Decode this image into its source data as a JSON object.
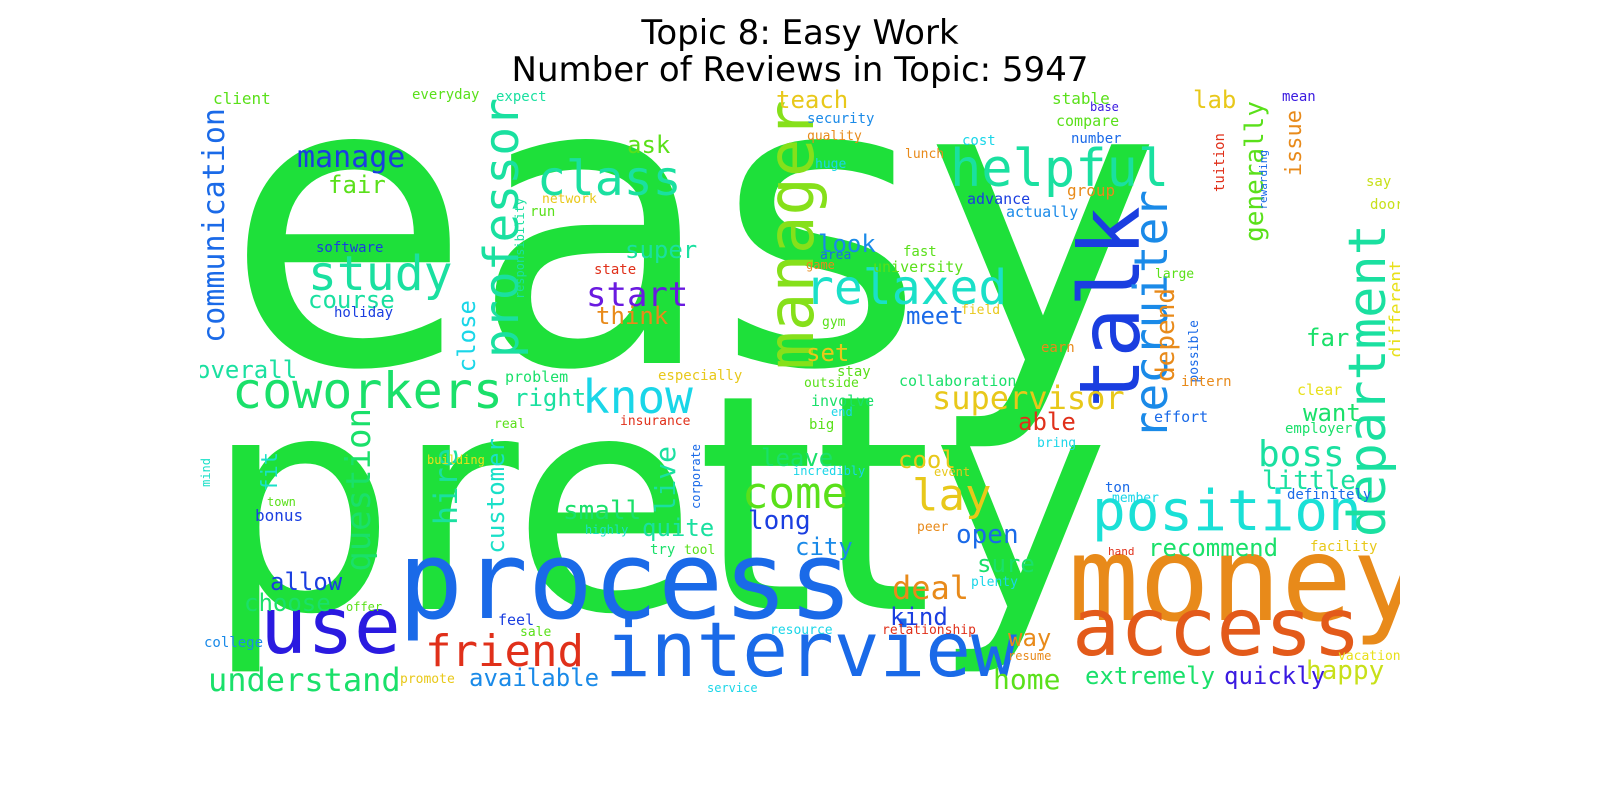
{
  "title_line1": "Topic 8: Easy Work",
  "title_line2": "Number of Reviews in Topic: 5947",
  "words": [
    {
      "t": "easy",
      "c": "#1ee03a"
    },
    {
      "t": "pretty",
      "c": "#1ee03a"
    },
    {
      "t": "money",
      "c": "#e88a1a"
    },
    {
      "t": "process",
      "c": "#1a6ae8"
    },
    {
      "t": "interview",
      "c": "#1a6ae8"
    },
    {
      "t": "access",
      "c": "#e35a1a"
    },
    {
      "t": "use",
      "c": "#2a1ae0"
    },
    {
      "t": "talk",
      "c": "#1a3ee0"
    },
    {
      "t": "manager",
      "c": "#86e01a"
    },
    {
      "t": "position",
      "c": "#1ae0d6"
    },
    {
      "t": "department",
      "c": "#1ae0a0"
    },
    {
      "t": "recruiter",
      "c": "#1a8ae8"
    },
    {
      "t": "professor",
      "c": "#1ae0a0"
    },
    {
      "t": "coworkers",
      "c": "#1ae06a"
    },
    {
      "t": "helpful",
      "c": "#1ae0a0"
    },
    {
      "t": "relaxed",
      "c": "#1ae0c8"
    },
    {
      "t": "class",
      "c": "#1ae0a0"
    },
    {
      "t": "study",
      "c": "#1ae0a0"
    },
    {
      "t": "know",
      "c": "#1ad6e8"
    },
    {
      "t": "come",
      "c": "#5ae01a"
    },
    {
      "t": "lay",
      "c": "#e8c81a"
    },
    {
      "t": "friend",
      "c": "#e0301a"
    },
    {
      "t": "question",
      "c": "#1ae06a"
    },
    {
      "t": "communication",
      "c": "#1a6ae8"
    },
    {
      "t": "boss",
      "c": "#1ae0a0"
    },
    {
      "t": "understand",
      "c": "#1ae06a"
    },
    {
      "t": "deal",
      "c": "#e88a1a"
    },
    {
      "t": "hire",
      "c": "#1ae0a0"
    },
    {
      "t": "supervisor",
      "c": "#e8c81a"
    },
    {
      "t": "start",
      "c": "#6a1ae0"
    },
    {
      "t": "customer",
      "c": "#1ae0c8"
    },
    {
      "t": "manage",
      "c": "#1a3ee0"
    },
    {
      "t": "depend",
      "c": "#e88a1a"
    },
    {
      "t": "generally",
      "c": "#5ae01a"
    },
    {
      "t": "extremely",
      "c": "#1ae06a"
    },
    {
      "t": "quickly",
      "c": "#3a1ae0"
    },
    {
      "t": "available",
      "c": "#1a8ae8"
    },
    {
      "t": "home",
      "c": "#5ae01a"
    },
    {
      "t": "happy",
      "c": "#c8e01a"
    },
    {
      "t": "small",
      "c": "#1ae06a"
    },
    {
      "t": "live",
      "c": "#1ae0a0"
    },
    {
      "t": "long",
      "c": "#1a3ee0"
    },
    {
      "t": "way",
      "c": "#e88a1a"
    },
    {
      "t": "recommend",
      "c": "#1ae06a"
    },
    {
      "t": "little",
      "c": "#1ae0a0"
    },
    {
      "t": "want",
      "c": "#1ae06a"
    },
    {
      "t": "close",
      "c": "#1ad6e8"
    },
    {
      "t": "course",
      "c": "#1ae0a0"
    },
    {
      "t": "overall",
      "c": "#1ae0a0"
    },
    {
      "t": "right",
      "c": "#1ae0a0"
    },
    {
      "t": "allow",
      "c": "#1a3ee0"
    },
    {
      "t": "choose",
      "c": "#1ae06a"
    },
    {
      "t": "open",
      "c": "#1a6ae8"
    },
    {
      "t": "sure",
      "c": "#1ae06a"
    },
    {
      "t": "kind",
      "c": "#1a3ee0"
    },
    {
      "t": "city",
      "c": "#1a8ae8"
    },
    {
      "t": "quite",
      "c": "#1ae0a0"
    },
    {
      "t": "able",
      "c": "#e0301a"
    },
    {
      "t": "cool",
      "c": "#e8c81a"
    },
    {
      "t": "leave",
      "c": "#1ae06a"
    },
    {
      "t": "meet",
      "c": "#1a6ae8"
    },
    {
      "t": "look",
      "c": "#1a8ae8"
    },
    {
      "t": "super",
      "c": "#1ae0a0"
    },
    {
      "t": "think",
      "c": "#e88a1a"
    },
    {
      "t": "set",
      "c": "#e8c81a"
    },
    {
      "t": "fair",
      "c": "#5ae01a"
    },
    {
      "t": "ask",
      "c": "#5ae01a"
    },
    {
      "t": "teach",
      "c": "#e8c81a"
    },
    {
      "t": "lab",
      "c": "#e8c81a"
    },
    {
      "t": "issue",
      "c": "#e88a1a"
    },
    {
      "t": "far",
      "c": "#1ae06a"
    },
    {
      "t": "different",
      "c": "#e8e01a"
    },
    {
      "t": "fit",
      "c": "#1ae0c8"
    },
    {
      "t": "bonus",
      "c": "#1a3ee0"
    },
    {
      "t": "client",
      "c": "#5ae01a"
    },
    {
      "t": "everyday",
      "c": "#5ae01a"
    },
    {
      "t": "expect",
      "c": "#1ae0a0"
    },
    {
      "t": "security",
      "c": "#1a8ae8"
    },
    {
      "t": "quality",
      "c": "#e88a1a"
    },
    {
      "t": "cost",
      "c": "#1ad6e8"
    },
    {
      "t": "huge",
      "c": "#1ad6e8"
    },
    {
      "t": "lunch",
      "c": "#e88a1a"
    },
    {
      "t": "stable",
      "c": "#5ae01a"
    },
    {
      "t": "compare",
      "c": "#5ae01a"
    },
    {
      "t": "number",
      "c": "#1a6ae8"
    },
    {
      "t": "base",
      "c": "#3a1ae0"
    },
    {
      "t": "mean",
      "c": "#3a1ae0"
    },
    {
      "t": "tuition",
      "c": "#e0301a"
    },
    {
      "t": "rewarding",
      "c": "#1a6ae8"
    },
    {
      "t": "group",
      "c": "#e88a1a"
    },
    {
      "t": "advance",
      "c": "#1a3ee0"
    },
    {
      "t": "actually",
      "c": "#1a8ae8"
    },
    {
      "t": "say",
      "c": "#c8e01a"
    },
    {
      "t": "door",
      "c": "#c8e01a"
    },
    {
      "t": "network",
      "c": "#e8c81a"
    },
    {
      "t": "run",
      "c": "#5ae01a"
    },
    {
      "t": "responsibility",
      "c": "#1ae0a0"
    },
    {
      "t": "software",
      "c": "#1a3ee0"
    },
    {
      "t": "holiday",
      "c": "#1a3ee0"
    },
    {
      "t": "state",
      "c": "#e0301a"
    },
    {
      "t": "area",
      "c": "#1a6ae8"
    },
    {
      "t": "game",
      "c": "#e88a1a"
    },
    {
      "t": "fast",
      "c": "#5ae01a"
    },
    {
      "t": "university",
      "c": "#5ae01a"
    },
    {
      "t": "large",
      "c": "#5ae01a"
    },
    {
      "t": "field",
      "c": "#e8c81a"
    },
    {
      "t": "possible",
      "c": "#1a6ae8"
    },
    {
      "t": "gym",
      "c": "#5ae01a"
    },
    {
      "t": "earn",
      "c": "#e88a1a"
    },
    {
      "t": "intern",
      "c": "#e88a1a"
    },
    {
      "t": "especially",
      "c": "#e8c81a"
    },
    {
      "t": "stay",
      "c": "#5ae01a"
    },
    {
      "t": "collaboration",
      "c": "#1ae06a"
    },
    {
      "t": "outside",
      "c": "#5ae01a"
    },
    {
      "t": "problem",
      "c": "#1ae06a"
    },
    {
      "t": "involve",
      "c": "#1ae06a"
    },
    {
      "t": "end",
      "c": "#1ad6e8"
    },
    {
      "t": "clear",
      "c": "#e8e01a"
    },
    {
      "t": "effort",
      "c": "#1a6ae8"
    },
    {
      "t": "employer",
      "c": "#1ae06a"
    },
    {
      "t": "insurance",
      "c": "#e0301a"
    },
    {
      "t": "real",
      "c": "#5ae01a"
    },
    {
      "t": "big",
      "c": "#5ae01a"
    },
    {
      "t": "bring",
      "c": "#1ad6e8"
    },
    {
      "t": "mind",
      "c": "#1ae0c8"
    },
    {
      "t": "building",
      "c": "#e8e01a"
    },
    {
      "t": "corporate",
      "c": "#1a6ae8"
    },
    {
      "t": "incredibly",
      "c": "#1ad6e8"
    },
    {
      "t": "event",
      "c": "#e8c81a"
    },
    {
      "t": "ton",
      "c": "#1a6ae8"
    },
    {
      "t": "definitely",
      "c": "#1a6ae8"
    },
    {
      "t": "member",
      "c": "#1ad6e8"
    },
    {
      "t": "town",
      "c": "#5ae01a"
    },
    {
      "t": "highly",
      "c": "#1ae0c8"
    },
    {
      "t": "peer",
      "c": "#e88a1a"
    },
    {
      "t": "try",
      "c": "#1ae06a"
    },
    {
      "t": "tool",
      "c": "#5ae01a"
    },
    {
      "t": "hand",
      "c": "#e0301a"
    },
    {
      "t": "facility",
      "c": "#e8c81a"
    },
    {
      "t": "plenty",
      "c": "#1ad6e8"
    },
    {
      "t": "offer",
      "c": "#5ae01a"
    },
    {
      "t": "feel",
      "c": "#1a3ee0"
    },
    {
      "t": "sale",
      "c": "#5ae01a"
    },
    {
      "t": "college",
      "c": "#1a8ae8"
    },
    {
      "t": "resource",
      "c": "#1ad6e8"
    },
    {
      "t": "relationship",
      "c": "#e0301a"
    },
    {
      "t": "resume",
      "c": "#e88a1a"
    },
    {
      "t": "vacation",
      "c": "#e8e01a"
    },
    {
      "t": "promote",
      "c": "#e8c81a"
    },
    {
      "t": "service",
      "c": "#1ad6e8"
    }
  ]
}
